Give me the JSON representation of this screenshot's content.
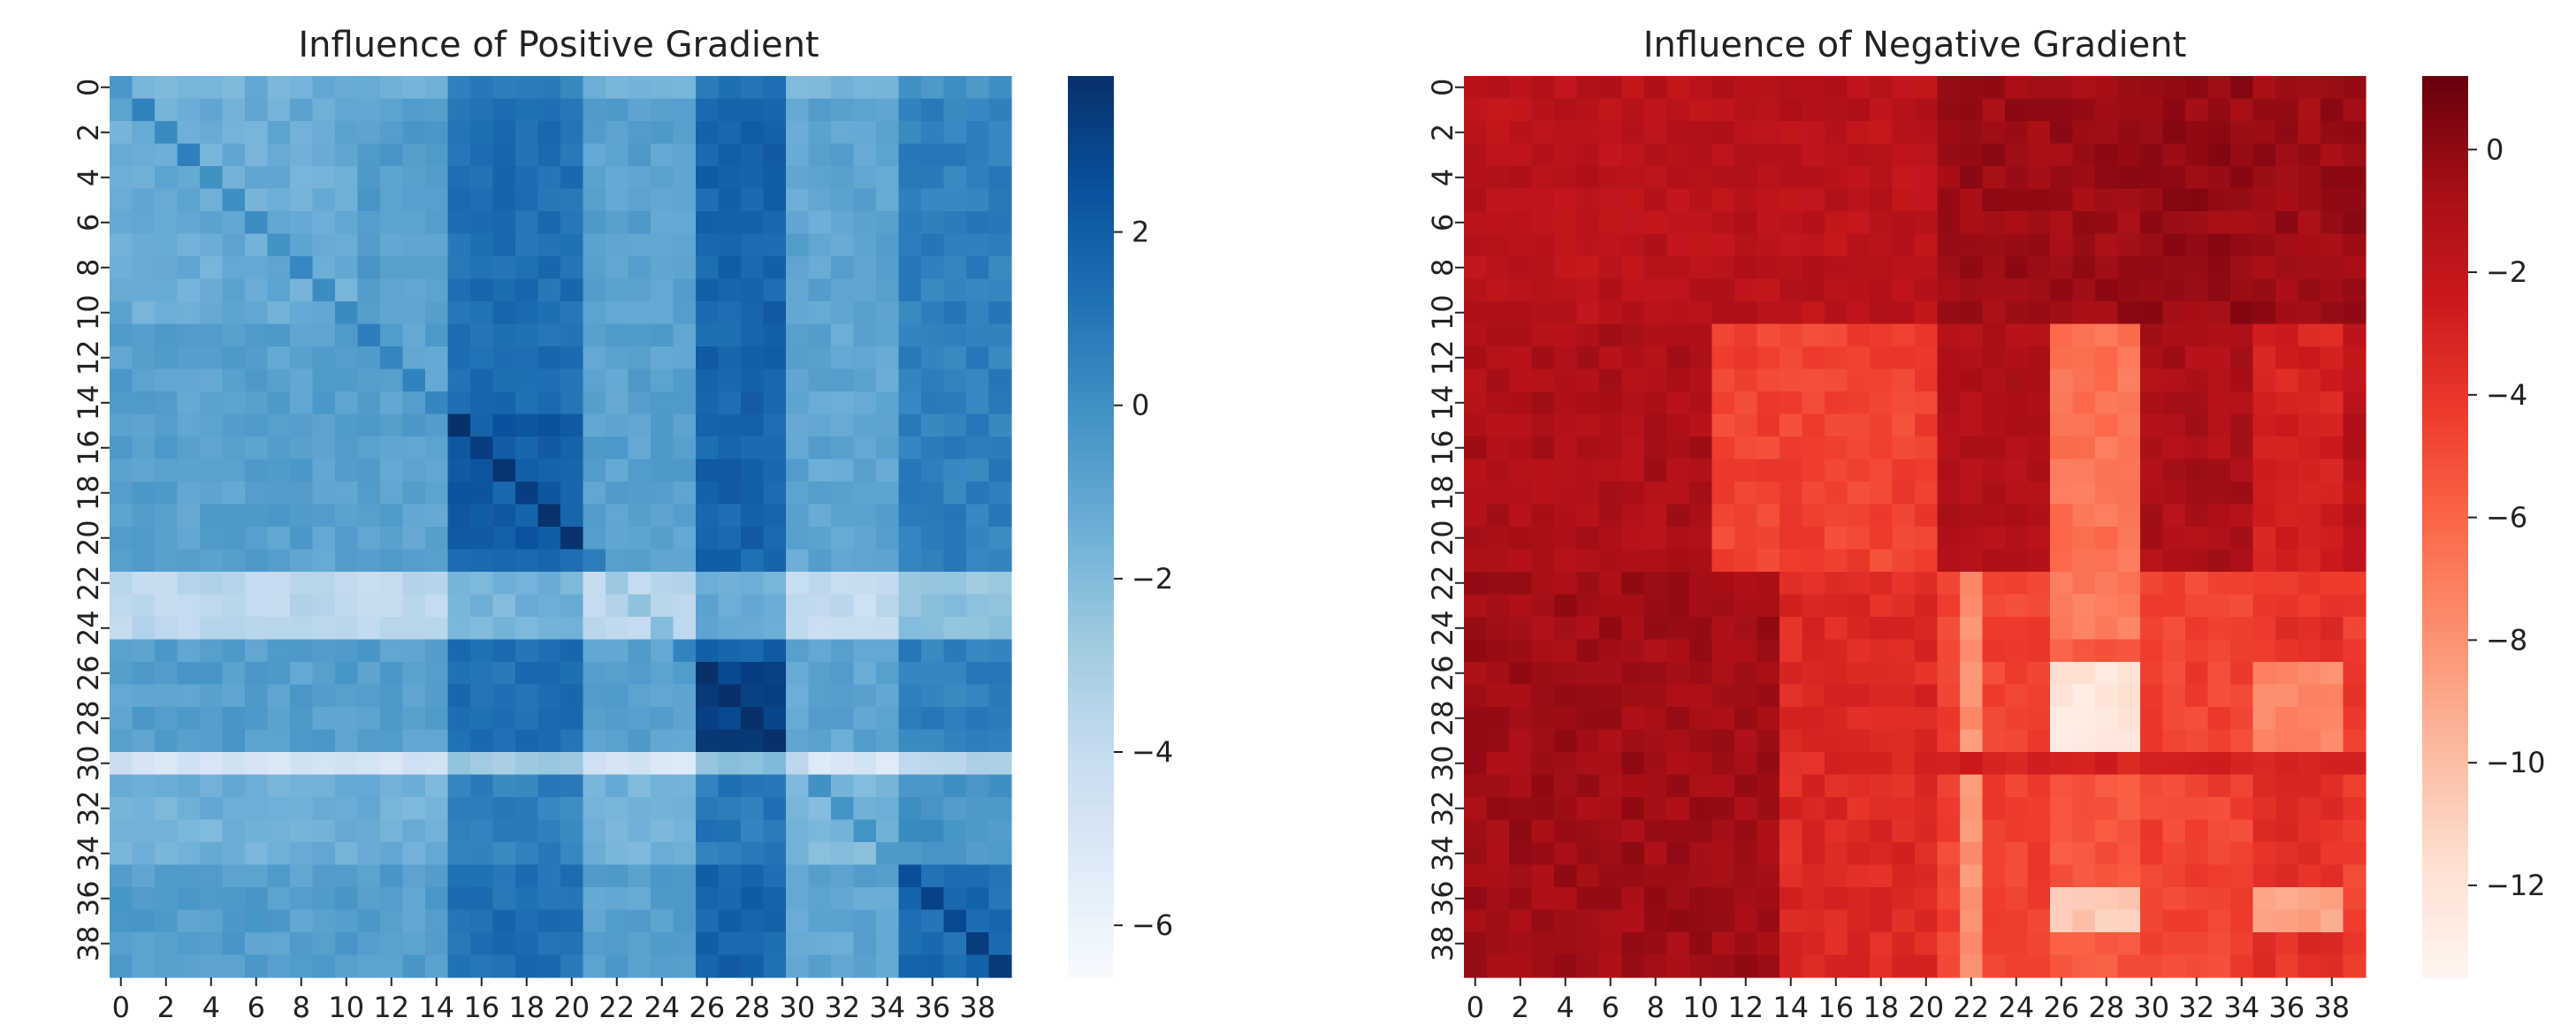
{
  "chart_data": [
    {
      "type": "heatmap",
      "title": "Influence of Positive Gradient",
      "colormap": "Blues",
      "rows": 40,
      "cols": 40,
      "value_range": [
        -6.6,
        3.8
      ],
      "x_tick_labels": [
        "0",
        "2",
        "4",
        "6",
        "8",
        "10",
        "12",
        "14",
        "16",
        "18",
        "20",
        "22",
        "24",
        "26",
        "28",
        "30",
        "32",
        "34",
        "36",
        "38"
      ],
      "y_tick_labels": [
        "0",
        "2",
        "4",
        "6",
        "8",
        "10",
        "12",
        "14",
        "16",
        "18",
        "20",
        "22",
        "24",
        "26",
        "28",
        "30",
        "32",
        "34",
        "36",
        "38"
      ],
      "colorbar_ticks": [
        {
          "value": 2,
          "label": "2"
        },
        {
          "value": 0,
          "label": "0"
        },
        {
          "value": -2,
          "label": "−2"
        },
        {
          "value": -4,
          "label": "−4"
        },
        {
          "value": -6,
          "label": "−6"
        }
      ],
      "cell_values_note": "Approximate block structure: column bands 0-14 light/mid, 15-20 dark, 21-25 light, 26-29 darkest, 30-34 light, 35-39 dark; rows 22-24 and 30 are very light horizontal bands; rows 0 and diagonal slightly darker."
    },
    {
      "type": "heatmap",
      "title": "Influence of Negative Gradient",
      "colormap": "Reds",
      "rows": 40,
      "cols": 40,
      "value_range": [
        -13.5,
        1.2
      ],
      "x_tick_labels": [
        "0",
        "2",
        "4",
        "6",
        "8",
        "10",
        "12",
        "14",
        "16",
        "18",
        "20",
        "22",
        "24",
        "26",
        "28",
        "30",
        "32",
        "34",
        "36",
        "38"
      ],
      "y_tick_labels": [
        "0",
        "2",
        "4",
        "6",
        "8",
        "10",
        "12",
        "14",
        "16",
        "18",
        "20",
        "22",
        "24",
        "26",
        "28",
        "30",
        "32",
        "34",
        "36",
        "38"
      ],
      "colorbar_ticks": [
        {
          "value": 0,
          "label": "0"
        },
        {
          "value": -2,
          "label": "−2"
        },
        {
          "value": -4,
          "label": "−4"
        },
        {
          "value": -6,
          "label": "−6"
        },
        {
          "value": -8,
          "label": "−8"
        },
        {
          "value": -10,
          "label": "−10"
        },
        {
          "value": -12,
          "label": "−12"
        }
      ],
      "cell_values_note": "Approximate block structure: dark red rows 0-10 on most columns, lighter blocks at rows 11-21 x cols 11-20, very light patches at rows 26-29 and 36-37 x cols 26-28, medium band at rows 22-39 x cols 21-33."
    }
  ]
}
